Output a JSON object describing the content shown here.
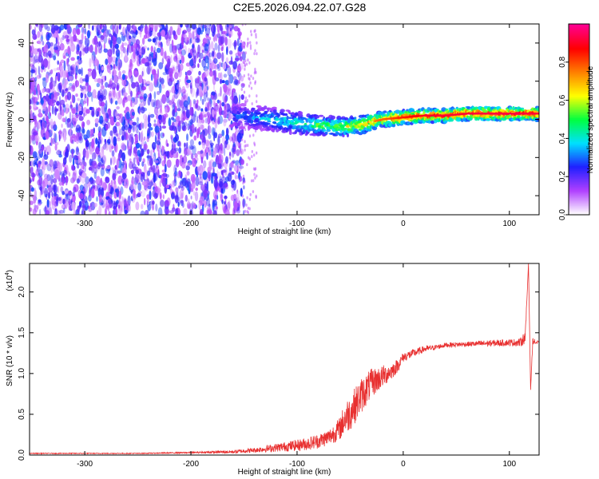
{
  "title": "C2E5.2026.094.22.07.G28",
  "chart_data": [
    {
      "type": "heatmap",
      "xlabel": "Height of straight line (km)",
      "ylabel": "Frequency (Hz)",
      "xlim": [
        -352,
        128
      ],
      "ylim": [
        -50,
        50
      ],
      "x_ticks": [
        -300,
        -200,
        -100,
        0,
        100
      ],
      "y_ticks": [
        -40,
        -20,
        0,
        20,
        40
      ],
      "colorbar": {
        "label": "Normalized spectral amplitude",
        "range": [
          0,
          1
        ],
        "ticks": [
          "0.0",
          "0.2",
          "0.4",
          "0.6",
          "0.8"
        ],
        "tick_values": [
          0.0,
          0.2,
          0.4,
          0.6,
          0.8
        ],
        "colors": [
          "#ffffff",
          "#b040ff",
          "#2020ff",
          "#00e0ff",
          "#00ff40",
          "#ffff00",
          "#ff8000",
          "#ff0000",
          "#ff0090"
        ]
      },
      "noise_region": {
        "x_range": [
          -352,
          -150
        ],
        "y_range": [
          -50,
          50
        ],
        "typical_amplitude": 0.15
      },
      "ridge": [
        {
          "x": -160,
          "y": 2,
          "amp": 0.28
        },
        {
          "x": -140,
          "y": 1,
          "amp": 0.35
        },
        {
          "x": -120,
          "y": 0,
          "amp": 0.4
        },
        {
          "x": -100,
          "y": -2,
          "amp": 0.45
        },
        {
          "x": -80,
          "y": -3,
          "amp": 0.55
        },
        {
          "x": -60,
          "y": -4,
          "amp": 0.6
        },
        {
          "x": -40,
          "y": -3,
          "amp": 0.7
        },
        {
          "x": -20,
          "y": 0,
          "amp": 0.78
        },
        {
          "x": 0,
          "y": 1,
          "amp": 0.85
        },
        {
          "x": 20,
          "y": 2,
          "amp": 0.9
        },
        {
          "x": 40,
          "y": 2,
          "amp": 0.92
        },
        {
          "x": 60,
          "y": 3,
          "amp": 0.92
        },
        {
          "x": 80,
          "y": 3,
          "amp": 0.93
        },
        {
          "x": 100,
          "y": 3,
          "amp": 0.93
        },
        {
          "x": 128,
          "y": 3,
          "amp": 0.92
        }
      ]
    },
    {
      "type": "line",
      "xlabel": "Height of straight line (km)",
      "ylabel": "SNR (10 * v/v)",
      "y_scale_label": "(x10",
      "y_scale_exponent": "4",
      "y_scale_suffix": ")",
      "xlim": [
        -352,
        128
      ],
      "ylim": [
        0,
        2.35
      ],
      "x_ticks": [
        -300,
        -200,
        -100,
        0,
        100
      ],
      "y_ticks": [
        "0.0",
        "0.5",
        "1.0",
        "1.5",
        "2.0"
      ],
      "y_tick_values": [
        0.0,
        0.5,
        1.0,
        1.5,
        2.0
      ],
      "series": [
        {
          "color": "#e83030",
          "x": [
            -352,
            -300,
            -250,
            -200,
            -160,
            -140,
            -120,
            -100,
            -90,
            -80,
            -70,
            -60,
            -55,
            -50,
            -45,
            -40,
            -35,
            -30,
            -25,
            -20,
            -15,
            -10,
            -5,
            0,
            10,
            20,
            30,
            40,
            60,
            80,
            100,
            110,
            115,
            118,
            120,
            122,
            125,
            128
          ],
          "y": [
            0.02,
            0.02,
            0.02,
            0.03,
            0.04,
            0.06,
            0.09,
            0.12,
            0.14,
            0.17,
            0.22,
            0.32,
            0.45,
            0.52,
            0.62,
            0.72,
            0.8,
            0.88,
            0.92,
            0.96,
            1.0,
            1.04,
            1.1,
            1.2,
            1.25,
            1.3,
            1.32,
            1.35,
            1.36,
            1.37,
            1.38,
            1.38,
            1.45,
            2.35,
            0.8,
            1.4,
            1.38,
            1.37
          ],
          "jitter": [
            0.005,
            0.005,
            0.005,
            0.008,
            0.02,
            0.03,
            0.05,
            0.07,
            0.08,
            0.09,
            0.1,
            0.14,
            0.2,
            0.22,
            0.22,
            0.22,
            0.2,
            0.18,
            0.16,
            0.14,
            0.12,
            0.1,
            0.08,
            0.06,
            0.05,
            0.04,
            0.03,
            0.03,
            0.03,
            0.04,
            0.04,
            0.05,
            0.08,
            0.0,
            0.0,
            0.04,
            0.03,
            0.03
          ]
        }
      ]
    }
  ]
}
